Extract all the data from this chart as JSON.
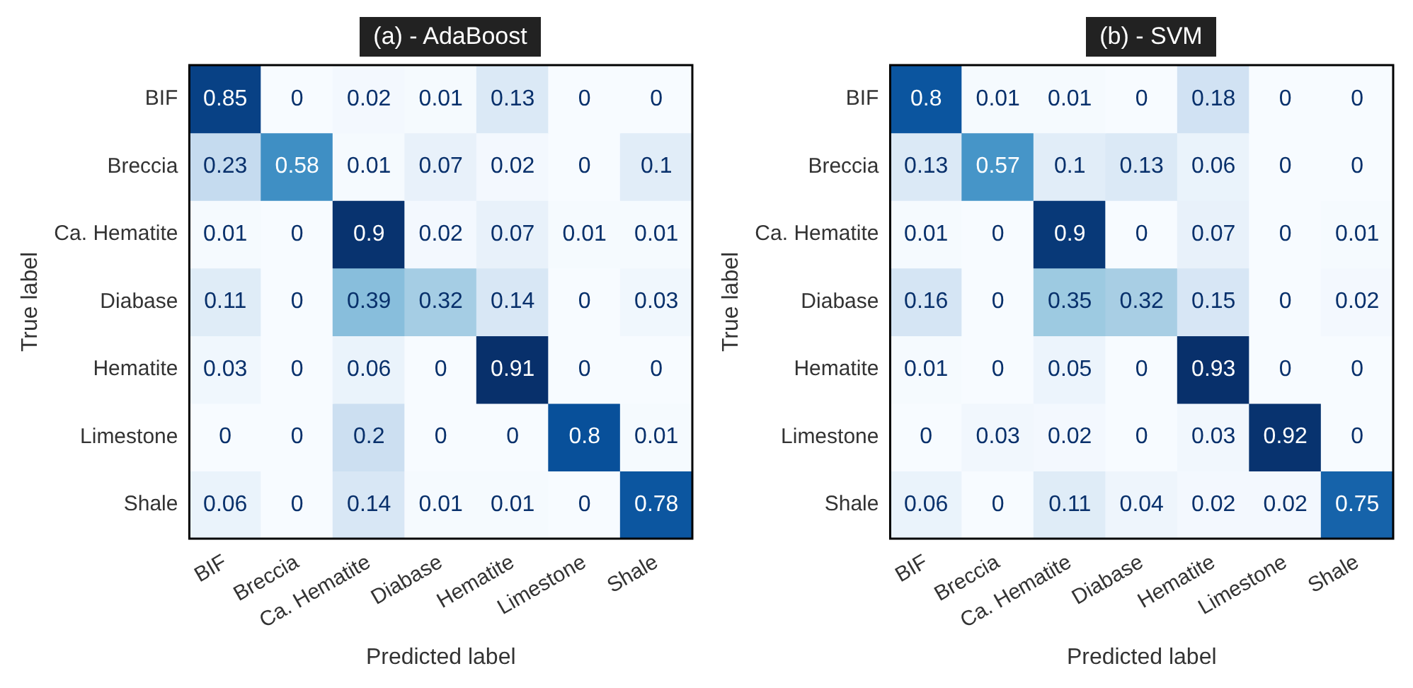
{
  "chart_data": [
    {
      "type": "heatmap",
      "title": "(a) - AdaBoost",
      "xlabel": "Predicted label",
      "ylabel": "True label",
      "data_labels": true,
      "categories": [
        "BIF",
        "Breccia",
        "Ca. Hematite",
        "Diabase",
        "Hematite",
        "Limestone",
        "Shale"
      ],
      "y_categories": [
        "BIF",
        "Breccia",
        "Ca. Hematite",
        "Diabase",
        "Hematite",
        "Limestone",
        "Shale"
      ],
      "cells": [
        [
          0.85,
          0,
          0.02,
          0.01,
          0.13,
          0,
          0
        ],
        [
          0.23,
          0.58,
          0.01,
          0.07,
          0.02,
          0,
          0.1
        ],
        [
          0.01,
          0,
          0.9,
          0.02,
          0.07,
          0.01,
          0.01
        ],
        [
          0.11,
          0,
          0.39,
          0.32,
          0.14,
          0,
          0.03
        ],
        [
          0.03,
          0,
          0.06,
          0,
          0.91,
          0,
          0
        ],
        [
          0,
          0,
          0.2,
          0,
          0,
          0.8,
          0.01
        ],
        [
          0.06,
          0,
          0.14,
          0.01,
          0.01,
          0,
          0.78
        ]
      ]
    },
    {
      "type": "heatmap",
      "title": "(b) - SVM",
      "xlabel": "Predicted label",
      "ylabel": "True label",
      "data_labels": true,
      "categories": [
        "BIF",
        "Breccia",
        "Ca. Hematite",
        "Diabase",
        "Hematite",
        "Limestone",
        "Shale"
      ],
      "y_categories": [
        "BIF",
        "Breccia",
        "Ca. Hematite",
        "Diabase",
        "Hematite",
        "Limestone",
        "Shale"
      ],
      "cells": [
        [
          0.8,
          0.01,
          0.01,
          0,
          0.18,
          0,
          0
        ],
        [
          0.13,
          0.57,
          0.1,
          0.13,
          0.06,
          0,
          0
        ],
        [
          0.01,
          0,
          0.9,
          0,
          0.07,
          0,
          0.01
        ],
        [
          0.16,
          0,
          0.35,
          0.32,
          0.15,
          0,
          0.02
        ],
        [
          0.01,
          0,
          0.05,
          0,
          0.93,
          0,
          0
        ],
        [
          0,
          0.03,
          0.02,
          0,
          0.03,
          0.92,
          0
        ],
        [
          0.06,
          0,
          0.11,
          0.04,
          0.02,
          0.02,
          0.75
        ]
      ]
    }
  ]
}
